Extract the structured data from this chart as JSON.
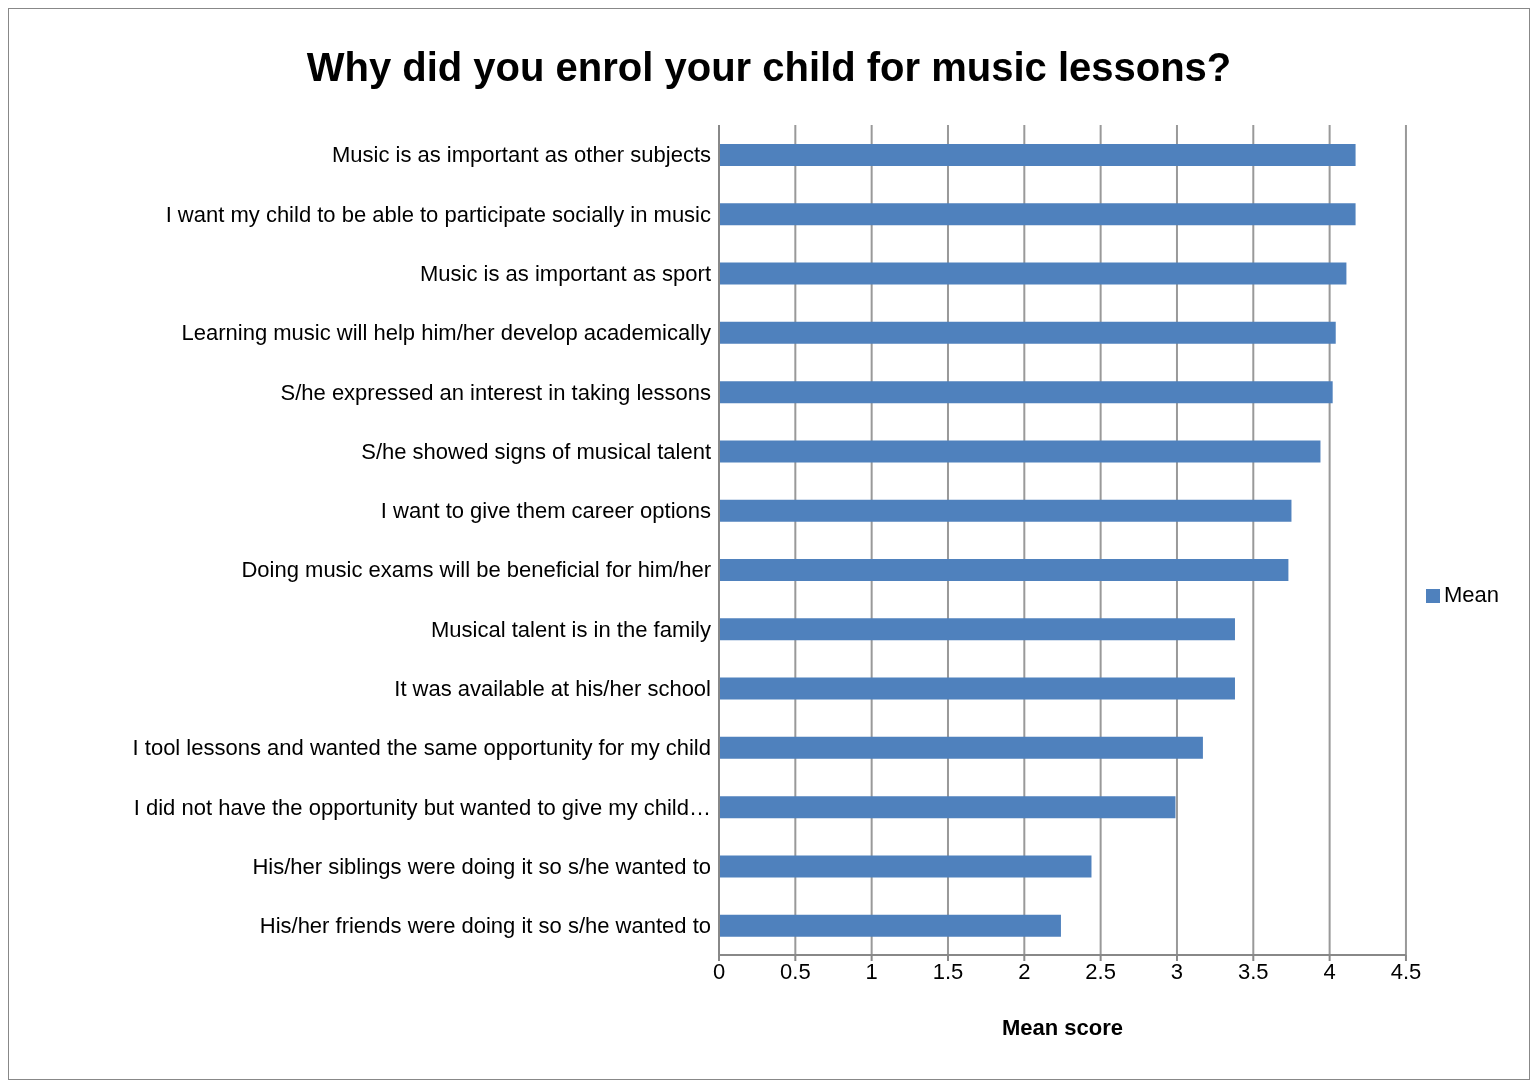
{
  "chart_data": {
    "type": "bar",
    "orientation": "horizontal",
    "title": "Why did you enrol your child for music lessons?",
    "xlabel": "Mean score",
    "categories": [
      "Music is as important as other subjects",
      "I want my child to be able to participate socially in music",
      "Music is as important as sport",
      "Learning music will help him/her develop academically",
      "S/he expressed an interest in taking lessons",
      "S/he showed signs of musical talent",
      "I want to give them career options",
      "Doing music exams will be beneficial for him/her",
      "Musical talent is in the family",
      "It was available at his/her school",
      "I tool lessons and wanted the same opportunity for my child",
      "I did not have the opportunity but wanted to give my child…",
      "His/her siblings were doing it so s/he wanted to",
      "His/her friends were doing it so s/he wanted to"
    ],
    "series": [
      {
        "name": "Mean",
        "color": "#4f81bd",
        "values": [
          4.17,
          4.17,
          4.11,
          4.04,
          4.02,
          3.94,
          3.75,
          3.73,
          3.38,
          3.38,
          3.17,
          2.99,
          2.44,
          2.24
        ]
      }
    ],
    "xlim": [
      0,
      4.5
    ],
    "xticks": [
      0,
      {
        "value": 0.5,
        "label": "0.5"
      },
      1,
      {
        "value": 1.5,
        "label": "1.5"
      },
      2,
      {
        "value": 2.5,
        "label": "2.5"
      },
      3,
      {
        "value": 3.5,
        "label": "3.5"
      },
      4,
      {
        "value": 4.5,
        "label": "4.5"
      }
    ],
    "grid": "x",
    "legend": "right"
  }
}
